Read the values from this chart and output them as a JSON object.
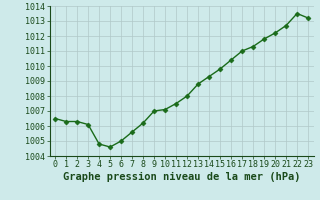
{
  "hours": [
    0,
    1,
    2,
    3,
    4,
    5,
    6,
    7,
    8,
    9,
    10,
    11,
    12,
    13,
    14,
    15,
    16,
    17,
    18,
    19,
    20,
    21,
    22,
    23
  ],
  "pressure": [
    1006.5,
    1006.3,
    1006.3,
    1006.1,
    1004.8,
    1004.6,
    1005.0,
    1005.6,
    1006.2,
    1007.0,
    1007.1,
    1007.5,
    1008.0,
    1008.8,
    1009.3,
    1009.8,
    1010.4,
    1011.0,
    1011.3,
    1011.8,
    1012.2,
    1012.7,
    1013.5,
    1013.2
  ],
  "ylim": [
    1004,
    1014
  ],
  "xlim_min": -0.5,
  "xlim_max": 23.5,
  "yticks": [
    1004,
    1005,
    1006,
    1007,
    1008,
    1009,
    1010,
    1011,
    1012,
    1013,
    1014
  ],
  "xticks": [
    0,
    1,
    2,
    3,
    4,
    5,
    6,
    7,
    8,
    9,
    10,
    11,
    12,
    13,
    14,
    15,
    16,
    17,
    18,
    19,
    20,
    21,
    22,
    23
  ],
  "line_color": "#1a6b1a",
  "marker": "D",
  "marker_size": 2.5,
  "bg_color": "#ceeaea",
  "grid_color": "#b0c8c8",
  "xlabel": "Graphe pression niveau de la mer (hPa)",
  "xlabel_fontsize": 7.5,
  "tick_fontsize": 6,
  "line_width": 1.0
}
